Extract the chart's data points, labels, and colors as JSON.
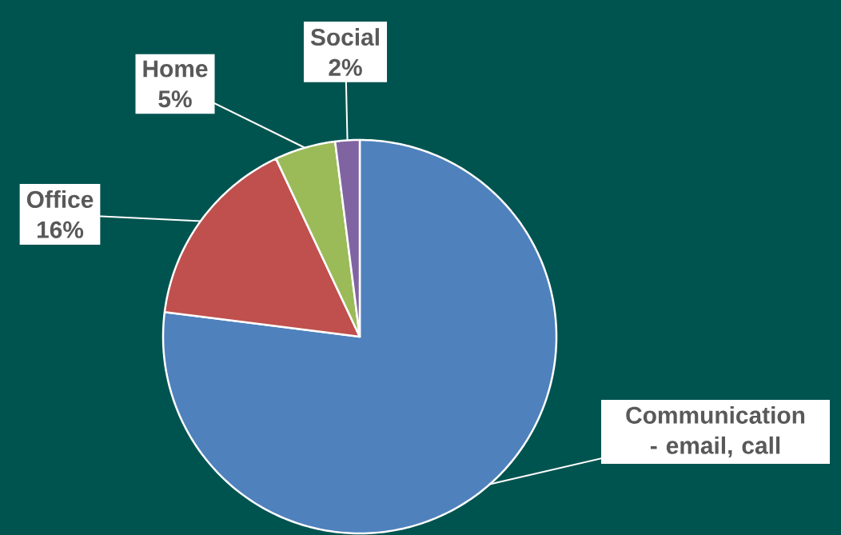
{
  "chart_data": {
    "type": "pie",
    "categories": [
      "Communication - email, call",
      "Office",
      "Home",
      "Social"
    ],
    "values": [
      77,
      16,
      5,
      2
    ],
    "value_labels": [
      null,
      "16%",
      "5%",
      "2%"
    ],
    "colors": [
      "#4f81bd",
      "#c0504d",
      "#9bbb59",
      "#8064a2"
    ]
  }
}
